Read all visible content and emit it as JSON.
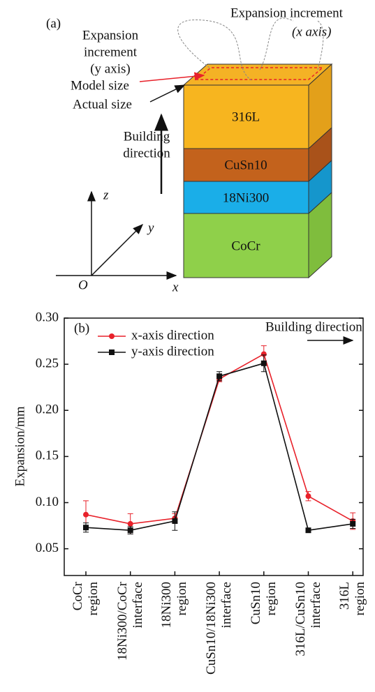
{
  "diagram": {
    "label": "(a)",
    "expansion_x": [
      "Expansion increment",
      "(x axis)"
    ],
    "expansion_y": [
      "Expansion",
      "increment",
      "(y axis)"
    ],
    "model_size": "Model size",
    "actual_size": "Actual size",
    "building_direction": [
      "Building",
      "direction"
    ],
    "layers": [
      "316L",
      "CuSn10",
      "18Ni300",
      "CoCr"
    ],
    "axes": {
      "z": "z",
      "y": "y",
      "x": "x",
      "origin": "O"
    }
  },
  "chart_data": {
    "type": "line",
    "label": "(b)",
    "ylabel": "Expansion/mm",
    "annotation": "Building direction",
    "categories": [
      "CoCr\nregion",
      "18Ni300/CoCr\ninterface",
      "18Ni300\nregion",
      "CuSn10/18Ni300\ninterface",
      "CuSn10\nregion",
      "316L/CuSn10\ninterface",
      "316L\nregion"
    ],
    "series": [
      {
        "name": "x-axis direction",
        "color": "#e8212a",
        "marker": "circle",
        "values": [
          0.087,
          0.077,
          0.083,
          0.234,
          0.261,
          0.107,
          0.08
        ],
        "errors": [
          0.015,
          0.011,
          0.005,
          0.003,
          0.009,
          0.005,
          0.009
        ]
      },
      {
        "name": "y-axis direction",
        "color": "#111111",
        "marker": "square",
        "values": [
          0.073,
          0.07,
          0.08,
          0.237,
          0.251,
          0.07,
          0.077
        ],
        "errors": [
          0.005,
          0.004,
          0.01,
          0.005,
          0.009,
          0.001,
          0.005
        ]
      }
    ],
    "ylim": [
      0.021,
      0.3
    ],
    "yticks": [
      {
        "value": 0.3,
        "label": "0.30"
      },
      0.25,
      {
        "value": 0.2,
        "label": "0.20"
      },
      0.15,
      {
        "value": 0.1,
        "label": "0.10"
      },
      0.05
    ]
  }
}
